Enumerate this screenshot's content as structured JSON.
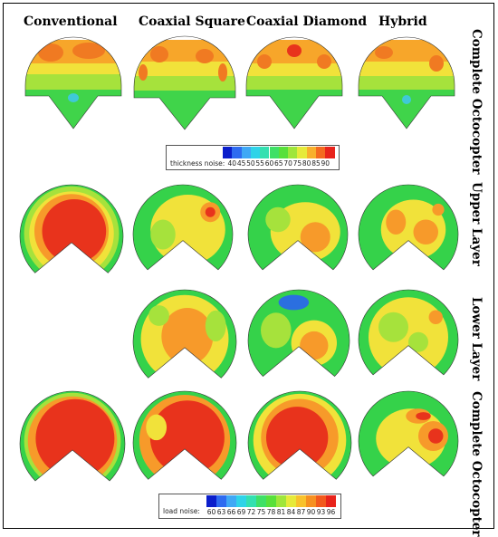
{
  "columns": [
    "Conventional",
    "Coaxial Square",
    "Coaxial Diamond",
    "Hybrid"
  ],
  "rows": [
    "Complete Octocopter",
    "Upper Layer",
    "Lower Layer",
    "Complete Octocopter"
  ],
  "legend_thickness": {
    "label": "thickness noise:",
    "ticks": [
      "40",
      "45",
      "50",
      "55",
      "60",
      "65",
      "70",
      "75",
      "80",
      "85",
      "90"
    ],
    "colors": [
      "#0b1ecb",
      "#2e6bf0",
      "#3fa8f5",
      "#2fd3e8",
      "#33e0b0",
      "#3fe066",
      "#58e03a",
      "#9fe63a",
      "#e6ea3a",
      "#f8b02c",
      "#f46a1f",
      "#e8231b"
    ]
  },
  "legend_load": {
    "label": "load noise:",
    "ticks": [
      "60",
      "63",
      "66",
      "69",
      "72",
      "75",
      "78",
      "81",
      "84",
      "87",
      "90",
      "93",
      "96"
    ],
    "colors": [
      "#0b1ecb",
      "#2e6bf0",
      "#3fa8f5",
      "#2fd3e8",
      "#33e0b0",
      "#3fe066",
      "#58e03a",
      "#9fe63a",
      "#e6ea3a",
      "#f8c22c",
      "#f69020",
      "#f2591c",
      "#e8231b"
    ]
  },
  "colors": {
    "red": "#e8331c",
    "orange": "#f79a2a",
    "yellow": "#f1e23a",
    "lime": "#a6e23c",
    "green": "#35d24a",
    "cyan": "#3fc9d8",
    "blue": "#2b6fe0"
  }
}
